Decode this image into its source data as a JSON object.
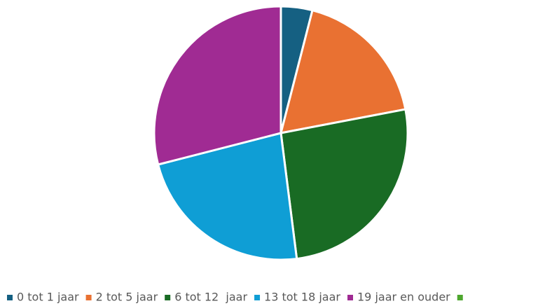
{
  "chart_data": {
    "type": "pie",
    "categories": [
      "0 tot 1 jaar",
      "2 tot 5 jaar",
      "6 tot 12  jaar",
      "13 tot 18 jaar",
      "19 jaar en ouder",
      null
    ],
    "values": [
      4,
      18,
      26,
      23,
      29,
      0
    ],
    "colors": [
      "#156082",
      "#e97132",
      "#196b24",
      "#0f9ed5",
      "#a02b93",
      "#4ea72e"
    ],
    "legend": "bottom"
  }
}
